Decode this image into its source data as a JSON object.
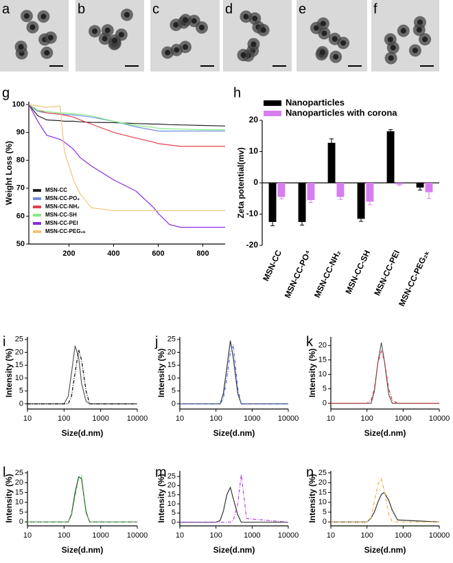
{
  "image_labels": [
    "a",
    "b",
    "c",
    "d",
    "e",
    "f"
  ],
  "chart_data": [
    {
      "type": "line",
      "panel_label": "g",
      "ylabel": "Weight Loss (%)",
      "x": [
        20,
        60,
        100,
        160,
        180,
        220,
        250,
        300,
        400,
        500,
        580,
        600,
        650,
        700,
        800,
        900
      ],
      "xlim": [
        20,
        900
      ],
      "xticks": [
        200,
        400,
        600,
        800
      ],
      "ylim": [
        50,
        101
      ],
      "yticks": [
        50,
        60,
        70,
        80,
        90,
        100
      ],
      "legend": "lower left",
      "series": [
        {
          "name": "MSN-CC",
          "color": "#222222",
          "values": [
            100,
            96,
            94.5,
            94.2,
            94,
            94,
            93.8,
            93.6,
            93.5,
            93.2,
            93,
            93,
            92.8,
            92.7,
            92.5,
            92.3
          ]
        },
        {
          "name": "MSN-CC-PO₄",
          "color": "#6f8fdd",
          "values": [
            100,
            97.5,
            97,
            96.6,
            96.5,
            96.3,
            96,
            95.5,
            94,
            92,
            90.8,
            90.5,
            90.5,
            90.5,
            90.5,
            90.5
          ]
        },
        {
          "name": "MSN-CC-NH₂",
          "color": "#e0404a",
          "values": [
            100,
            98,
            97,
            96.5,
            96.2,
            95.5,
            94.5,
            93,
            90,
            88,
            86.5,
            86,
            85.5,
            85,
            85,
            85
          ]
        },
        {
          "name": "MSN-CC-SH",
          "color": "#80ee80",
          "values": [
            100,
            98,
            97.5,
            97,
            97,
            96.7,
            96.5,
            96,
            94,
            92.5,
            91.8,
            91.5,
            91.3,
            91.2,
            91,
            91
          ]
        },
        {
          "name": "MSN-CC-PEI",
          "color": "#8a2be2",
          "values": [
            100,
            94,
            89,
            87.5,
            86.5,
            84,
            81,
            78,
            73,
            69,
            63,
            61,
            57,
            56,
            56,
            56
          ]
        },
        {
          "name": "MSN-CC-PEG₂ₖ",
          "color": "#f2c27a",
          "values": [
            100,
            99.5,
            99,
            99.5,
            83,
            73,
            68,
            63,
            62,
            62,
            62,
            62,
            62,
            62,
            62,
            62
          ]
        }
      ]
    },
    {
      "type": "bar",
      "panel_label": "h",
      "ylabel": "Zeta potential(mv)",
      "categories": [
        "MSN-CC",
        "MSN-CC-PO⁴",
        "MSN-CC-NH₂",
        "MSN-CC-SH",
        "MSN-CC-PEI",
        "MSN-CC-PEG₂ₖ"
      ],
      "ylim": [
        -20,
        20
      ],
      "yticks": [
        -20,
        -10,
        0,
        10,
        20
      ],
      "legend": "top",
      "series": [
        {
          "name": "Nanoparticles",
          "color": "#000000",
          "values": [
            -12.5,
            -12.5,
            12.8,
            -11.5,
            16.5,
            -1.5
          ],
          "errors": [
            1.2,
            1,
            1.3,
            0.8,
            0.5,
            0.8
          ]
        },
        {
          "name": "Nanoparticles with corona",
          "color": "#d67ef0",
          "values": [
            -4.5,
            -5.5,
            -4.5,
            -6,
            -0.5,
            -3
          ],
          "errors": [
            0.6,
            0.8,
            0.8,
            1,
            0.3,
            2
          ]
        }
      ]
    },
    {
      "type": "line",
      "panel_label": "i",
      "ylabel": "Intensity (%)",
      "xlabel": "Size(d.nm)",
      "xscale": "log",
      "x": [
        10,
        100,
        130,
        160,
        200,
        250,
        300,
        400,
        500,
        700,
        10000
      ],
      "xlim": [
        10,
        10000
      ],
      "xticks": [
        10,
        100,
        1000,
        10000
      ],
      "ylim": [
        -2,
        26
      ],
      "yticks": [
        0,
        5,
        10,
        15,
        20,
        25
      ],
      "series": [
        {
          "color": "#555555",
          "values": [
            0,
            0,
            3,
            12,
            22.5,
            18,
            8,
            1,
            0,
            0,
            0
          ]
        },
        {
          "color": "#000000",
          "dash": true,
          "values": [
            0,
            0,
            0,
            3,
            12,
            21,
            17,
            5,
            0,
            0,
            0
          ]
        }
      ]
    },
    {
      "type": "line",
      "panel_label": "j",
      "ylabel": "Intensity (%)",
      "xlabel": "Size(d.nm)",
      "xscale": "log",
      "x": [
        10,
        100,
        130,
        160,
        200,
        250,
        300,
        400,
        500,
        700,
        10000
      ],
      "xlim": [
        10,
        10000
      ],
      "xticks": [
        10,
        100,
        1000,
        10000
      ],
      "ylim": [
        -2,
        26
      ],
      "yticks": [
        0,
        5,
        10,
        15,
        20,
        25
      ],
      "series": [
        {
          "color": "#333333",
          "values": [
            0,
            0,
            0,
            4,
            14,
            24.5,
            18,
            4,
            0,
            0,
            0
          ]
        },
        {
          "color": "#4a6fd6",
          "dash": true,
          "values": [
            0,
            0,
            0,
            2,
            10,
            20,
            23,
            6,
            0,
            0,
            0
          ]
        }
      ]
    },
    {
      "type": "line",
      "panel_label": "k",
      "ylabel": "Intensity (%)",
      "xlabel": "Size(d.nm)",
      "xscale": "log",
      "x": [
        10,
        100,
        130,
        160,
        200,
        250,
        300,
        400,
        500,
        700,
        10000
      ],
      "xlim": [
        10,
        10000
      ],
      "xticks": [
        10,
        100,
        1000,
        10000
      ],
      "ylim": [
        -2,
        23
      ],
      "yticks": [
        0,
        5,
        10,
        15,
        20
      ],
      "series": [
        {
          "color": "#555555",
          "values": [
            0,
            0,
            0,
            4,
            14,
            21,
            15,
            3,
            0,
            0,
            0
          ]
        },
        {
          "color": "#e0303a",
          "dash": true,
          "values": [
            0,
            0,
            1,
            5,
            14,
            18,
            15,
            5,
            1,
            0,
            0
          ]
        }
      ]
    },
    {
      "type": "line",
      "panel_label": "l",
      "ylabel": "Intensity (%)",
      "xlabel": "Size(d.nm)",
      "xscale": "log",
      "x": [
        10,
        100,
        130,
        160,
        200,
        250,
        300,
        400,
        500,
        700,
        10000
      ],
      "xlim": [
        10,
        10000
      ],
      "xticks": [
        10,
        100,
        1000,
        10000
      ],
      "ylim": [
        -2,
        26
      ],
      "yticks": [
        0,
        5,
        10,
        15,
        20,
        25
      ],
      "series": [
        {
          "color": "#333333",
          "values": [
            0,
            0,
            0,
            4,
            15,
            23,
            22,
            5,
            0,
            0,
            0
          ]
        },
        {
          "color": "#60d860",
          "dash": true,
          "values": [
            0,
            0,
            0,
            3,
            13,
            22,
            23.5,
            6,
            0,
            0,
            0
          ]
        }
      ]
    },
    {
      "type": "line",
      "panel_label": "m",
      "ylabel": "Intensity (%)",
      "xlabel": "Size(d.nm)",
      "xscale": "log",
      "x": [
        10,
        100,
        130,
        160,
        200,
        250,
        300,
        400,
        500,
        700,
        10000
      ],
      "xlim": [
        10,
        10000
      ],
      "xticks": [
        10,
        100,
        1000,
        10000
      ],
      "ylim": [
        -2,
        28
      ],
      "yticks": [
        0,
        5,
        10,
        15,
        20,
        25
      ],
      "series": [
        {
          "color": "#333333",
          "values": [
            0,
            0,
            1,
            6,
            15,
            19,
            13,
            4,
            0,
            0,
            0
          ]
        },
        {
          "color": "#b040e0",
          "dash": true,
          "values": [
            0,
            0,
            0,
            0,
            0,
            0,
            1,
            10,
            26,
            2,
            0
          ]
        }
      ]
    },
    {
      "type": "line",
      "panel_label": "n",
      "ylabel": "Intensity (%)",
      "xlabel": "Size(d.nm)",
      "xscale": "log",
      "x": [
        10,
        100,
        130,
        160,
        200,
        250,
        300,
        400,
        500,
        700,
        10000
      ],
      "xlim": [
        10,
        10000
      ],
      "xticks": [
        10,
        100,
        1000,
        10000
      ],
      "ylim": [
        -2,
        26
      ],
      "yticks": [
        0,
        5,
        10,
        15,
        20,
        25
      ],
      "series": [
        {
          "color": "#333333",
          "values": [
            0,
            0,
            2,
            5,
            10,
            14,
            15,
            11,
            6,
            1,
            0
          ]
        },
        {
          "color": "#e8b040",
          "dash": true,
          "values": [
            0,
            0,
            2,
            10,
            19,
            22,
            16,
            4,
            0,
            0,
            0
          ]
        }
      ]
    }
  ]
}
